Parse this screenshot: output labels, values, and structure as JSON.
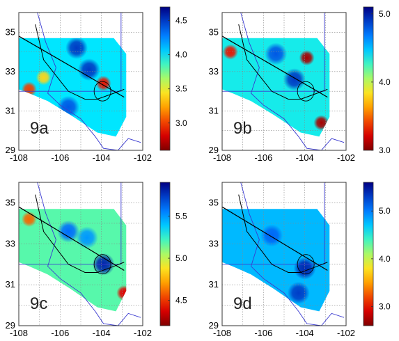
{
  "figure": {
    "panels": [
      {
        "id": "9a",
        "label": "9a",
        "x_ticks": [
          "-108",
          "-106",
          "-104",
          "-102"
        ],
        "y_ticks": [
          "35",
          "33",
          "31",
          "29"
        ],
        "colorbar_ticks": [
          "4.5",
          "4.0",
          "3.5",
          "3.0"
        ],
        "colorbar_range": [
          2.6,
          4.7
        ],
        "hotspots": [
          {
            "lon": -103.9,
            "lat": 32.4,
            "value": 2.9
          },
          {
            "lon": -107.5,
            "lat": 32.1,
            "value": 3.0
          },
          {
            "lon": -106.8,
            "lat": 32.7,
            "value": 3.4
          }
        ],
        "cool_spots": [
          {
            "lon": -105.2,
            "lat": 34.2,
            "value": 4.5
          },
          {
            "lon": -104.6,
            "lat": 33.1,
            "value": 4.5
          },
          {
            "lon": -105.6,
            "lat": 31.2,
            "value": 4.4
          }
        ]
      },
      {
        "id": "9b",
        "label": "9b",
        "x_ticks": [
          "-108",
          "-106",
          "-104",
          "-102"
        ],
        "y_ticks": [
          "35",
          "33",
          "31",
          "29"
        ],
        "colorbar_ticks": [
          "5.0",
          "4.0",
          "3.0"
        ],
        "colorbar_range": [
          3.0,
          5.1
        ],
        "hotspots": [
          {
            "lon": -103.9,
            "lat": 33.7,
            "value": 3.1
          },
          {
            "lon": -103.2,
            "lat": 30.4,
            "value": 3.1
          },
          {
            "lon": -107.6,
            "lat": 34.0,
            "value": 3.3
          }
        ],
        "cool_spots": [
          {
            "lon": -104.5,
            "lat": 32.6,
            "value": 4.9
          },
          {
            "lon": -105.4,
            "lat": 33.9,
            "value": 4.8
          }
        ]
      },
      {
        "id": "9c",
        "label": "9c",
        "x_ticks": [
          "-108",
          "-106",
          "-104",
          "-102"
        ],
        "y_ticks": [
          "35",
          "33",
          "31",
          "29"
        ],
        "colorbar_ticks": [
          "5.5",
          "5.0",
          "4.5"
        ],
        "colorbar_range": [
          4.2,
          5.9
        ],
        "hotspots": [
          {
            "lon": -107.5,
            "lat": 34.2,
            "value": 4.6
          },
          {
            "lon": -102.9,
            "lat": 30.6,
            "value": 4.4
          }
        ],
        "cool_spots": [
          {
            "lon": -103.9,
            "lat": 32.0,
            "value": 5.8
          },
          {
            "lon": -105.6,
            "lat": 33.6,
            "value": 5.6
          },
          {
            "lon": -104.7,
            "lat": 33.3,
            "value": 5.5
          }
        ]
      },
      {
        "id": "9d",
        "label": "9d",
        "x_ticks": [
          "-108",
          "-106",
          "-104",
          "-102"
        ],
        "y_ticks": [
          "35",
          "33",
          "31",
          "29"
        ],
        "colorbar_ticks": [
          "5.0",
          "4.0",
          "3.0"
        ],
        "colorbar_range": [
          2.6,
          5.6
        ],
        "hotspots": [],
        "cool_spots": [
          {
            "lon": -104.0,
            "lat": 31.8,
            "value": 5.4
          },
          {
            "lon": -104.3,
            "lat": 30.6,
            "value": 5.3
          },
          {
            "lon": -105.6,
            "lat": 33.4,
            "value": 5.1
          }
        ]
      }
    ],
    "map_extent": {
      "lon": [
        -108,
        -102
      ],
      "lat": [
        29,
        36
      ]
    },
    "grid": true,
    "grid_step_deg": 1,
    "colormap": "jet",
    "overlay_line_color": "#000000",
    "boundary_line_color": "#3a3ad0"
  }
}
